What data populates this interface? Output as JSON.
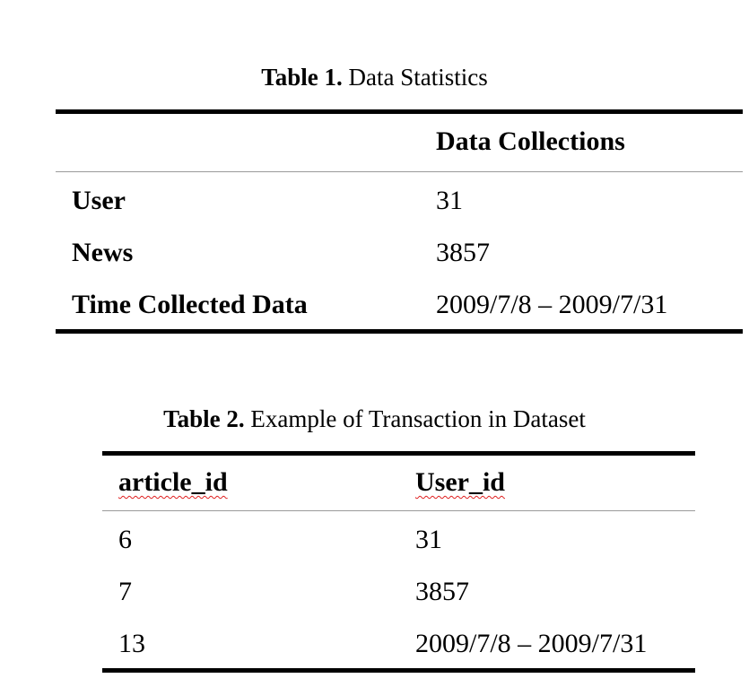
{
  "table1": {
    "caption_label": "Table 1.",
    "caption_text": " Data Statistics",
    "header": [
      "",
      "Data Collections"
    ],
    "rows": [
      [
        "User",
        "31"
      ],
      [
        "News",
        "3857"
      ],
      [
        "Time Collected Data",
        "2009/7/8 – 2009/7/31"
      ]
    ]
  },
  "table2": {
    "caption_label": "Table 2.",
    "caption_text": " Example of Transaction in Dataset",
    "header": [
      "article_id",
      "User_id"
    ],
    "rows": [
      [
        "6",
        "31"
      ],
      [
        "7",
        "3857"
      ],
      [
        "13",
        "2009/7/8 – 2009/7/31"
      ]
    ]
  },
  "colors": {
    "text": "#000000",
    "rule": "#000000",
    "thin_rule": "#9a9a9a",
    "spellcheck_underline": "#e02020"
  }
}
